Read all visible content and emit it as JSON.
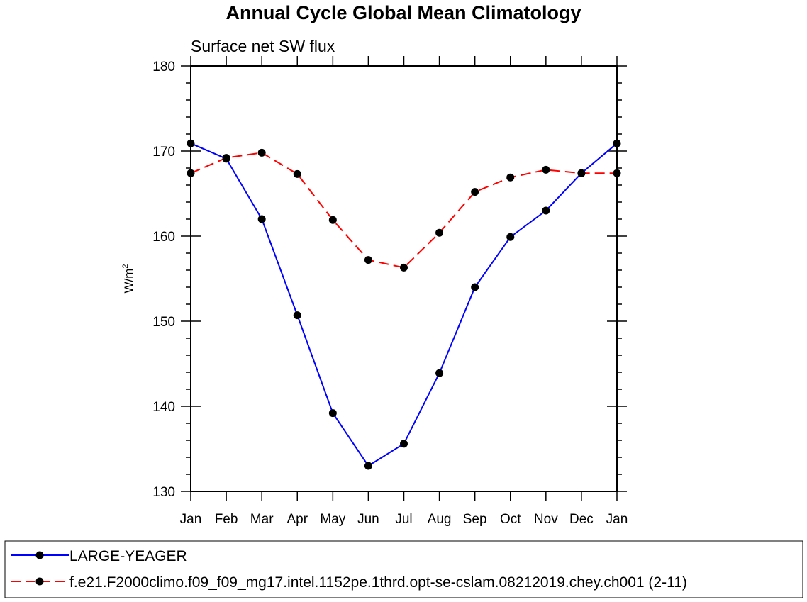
{
  "chart_data": {
    "type": "line",
    "title": "Annual Cycle Global Mean Climatology",
    "subtitle": "Surface net SW flux",
    "xlabel": "",
    "ylabel": "W/m",
    "ylabel_superscript": "2",
    "categories": [
      "Jan",
      "Feb",
      "Mar",
      "Apr",
      "May",
      "Jun",
      "Jul",
      "Aug",
      "Sep",
      "Oct",
      "Nov",
      "Dec",
      "Jan"
    ],
    "ylim": [
      130,
      180
    ],
    "yticks": [
      130,
      140,
      150,
      160,
      170,
      180
    ],
    "grid": false,
    "legend_position": "bottom",
    "series": [
      {
        "name": "LARGE-YEAGER",
        "color": "#0000ff",
        "line_style": "solid",
        "marker": "filled-circle",
        "values": [
          170.9,
          169.1,
          162.0,
          150.7,
          139.2,
          133.0,
          135.6,
          143.9,
          154.0,
          159.9,
          163.0,
          167.4,
          170.9
        ]
      },
      {
        "name": "f.e21.F2000climo.f09_f09_mg17.intel.1152pe.1thrd.opt-se-cslam.08212019.chey.ch001 (2-11)",
        "color": "#ff0000",
        "line_style": "dashed",
        "marker": "filled-circle",
        "values": [
          167.4,
          169.2,
          169.8,
          167.3,
          161.9,
          157.2,
          156.3,
          160.4,
          165.2,
          166.9,
          167.8,
          167.4,
          167.4
        ]
      }
    ]
  }
}
